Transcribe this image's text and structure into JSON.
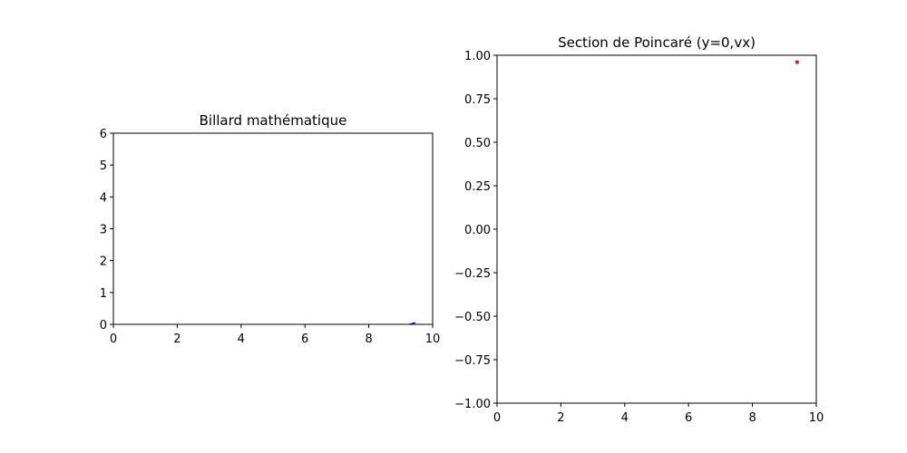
{
  "chart_data": [
    {
      "type": "line",
      "title": "Billard mathématique",
      "xlabel": "",
      "ylabel": "",
      "xlim": [
        0,
        10
      ],
      "ylim": [
        0,
        6
      ],
      "xticks": [
        0,
        2,
        4,
        6,
        8,
        10
      ],
      "yticks": [
        0,
        1,
        2,
        3,
        4,
        5,
        6
      ],
      "grid": false,
      "series": [
        {
          "color": "#0000ff",
          "x": [
            9.28,
            9.46
          ],
          "y": [
            0.0,
            0.05
          ]
        }
      ]
    },
    {
      "type": "scatter",
      "title": "Section de Poincaré (y=0,vx)",
      "xlabel": "",
      "ylabel": "",
      "xlim": [
        0,
        10
      ],
      "ylim": [
        -1.0,
        1.0
      ],
      "xticks": [
        0,
        2,
        4,
        6,
        8,
        10
      ],
      "yticks": [
        -1.0,
        -0.75,
        -0.5,
        -0.25,
        0.0,
        0.25,
        0.5,
        0.75,
        1.0
      ],
      "ytick_labels": [
        "−1.00",
        "−0.75",
        "−0.50",
        "−0.25",
        "0.00",
        "0.25",
        "0.50",
        "0.75",
        "1.00"
      ],
      "grid": false,
      "series": [
        {
          "color": "#ff0000",
          "x": [
            9.4
          ],
          "y": [
            0.96
          ]
        }
      ]
    }
  ]
}
